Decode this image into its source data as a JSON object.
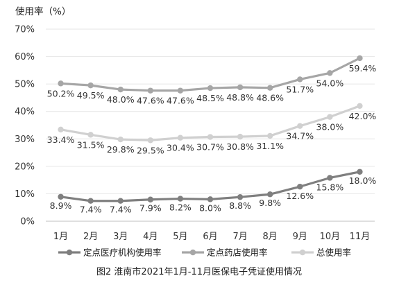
{
  "chart_data": {
    "type": "line",
    "ylabel": "使用率（%）",
    "caption": "图2  淮南市2021年1月-11月医保电子凭证使用情况",
    "categories": [
      "1月",
      "2月",
      "3月",
      "4月",
      "5月",
      "6月",
      "7月",
      "8月",
      "9月",
      "10月",
      "11月"
    ],
    "ylim": [
      0,
      70
    ],
    "yticks": [
      "0%",
      "10%",
      "20%",
      "30%",
      "40%",
      "50%",
      "60%",
      "70%"
    ],
    "grid": true,
    "legend_position": "bottom",
    "series": [
      {
        "name": "定点医疗机构使用率",
        "color": "#7f7f7f",
        "values": [
          8.9,
          7.4,
          7.4,
          7.9,
          8.2,
          8.0,
          8.8,
          9.8,
          12.6,
          15.8,
          18.0
        ],
        "labels": [
          "8.9%",
          "7.4%",
          "7.4%",
          "7.9%",
          "8.2%",
          "8.0%",
          "8.8%",
          "9.8%",
          "12.6%",
          "15.8%",
          "18.0%"
        ]
      },
      {
        "name": "定点药店使用率",
        "color": "#a6a6a6",
        "values": [
          50.2,
          49.5,
          48.0,
          47.6,
          47.6,
          48.5,
          48.8,
          48.6,
          51.7,
          54.0,
          59.4
        ],
        "labels": [
          "50.2%",
          "49.5%",
          "48.0%",
          "47.6%",
          "47.6%",
          "48.5%",
          "48.8%",
          "48.6%",
          "51.7%",
          "54.0%",
          "59.4%"
        ]
      },
      {
        "name": "总使用率",
        "color": "#d0d0d0",
        "values": [
          33.4,
          31.5,
          29.8,
          29.5,
          30.4,
          30.7,
          30.8,
          31.1,
          34.7,
          38.0,
          42.0
        ],
        "labels": [
          "33.4%",
          "31.5%",
          "29.8%",
          "29.5%",
          "30.4%",
          "30.7%",
          "30.8%",
          "31.1%",
          "34.7%",
          "38.0%",
          "42.0%"
        ]
      }
    ]
  }
}
